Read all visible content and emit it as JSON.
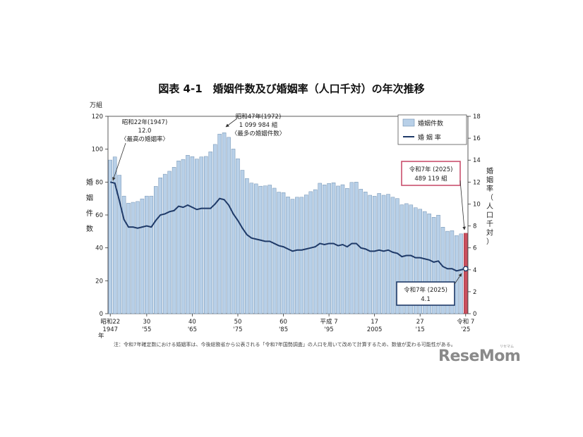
{
  "chart_data": {
    "type": "bar+line",
    "title": "図表 4-1　婚姻件数及び婚姻率（人口千対）の年次推移",
    "left_unit": "万組",
    "left_axis_label": [
      "婚",
      "姻",
      "件",
      "数"
    ],
    "right_axis_label": [
      "婚",
      "姻",
      "率",
      "（",
      "人",
      "口",
      "千",
      "対",
      "）"
    ],
    "y_left_ticks": [
      "0",
      "20",
      "40",
      "60",
      "80",
      "100",
      "120"
    ],
    "y_right_ticks": [
      "0",
      "2",
      "4",
      "6",
      "8",
      "10",
      "12",
      "14",
      "16",
      "18"
    ],
    "ylim_left": [
      0,
      120
    ],
    "ylim_right": [
      0,
      18
    ],
    "x_years": [
      1947,
      1948,
      1949,
      1950,
      1951,
      1952,
      1953,
      1954,
      1955,
      1956,
      1957,
      1958,
      1959,
      1960,
      1961,
      1962,
      1963,
      1964,
      1965,
      1966,
      1967,
      1968,
      1969,
      1970,
      1971,
      1972,
      1973,
      1974,
      1975,
      1976,
      1977,
      1978,
      1979,
      1980,
      1981,
      1982,
      1983,
      1984,
      1985,
      1986,
      1987,
      1988,
      1989,
      1990,
      1991,
      1992,
      1993,
      1994,
      1995,
      1996,
      1997,
      1998,
      1999,
      2000,
      2001,
      2002,
      2003,
      2004,
      2005,
      2006,
      2007,
      2008,
      2009,
      2010,
      2011,
      2012,
      2013,
      2014,
      2015,
      2016,
      2017,
      2018,
      2019,
      2020,
      2021,
      2022,
      2023,
      2024,
      2025
    ],
    "x_tick_labels": [
      {
        "year": 1947,
        "line1": "昭和22",
        "line2": "1947"
      },
      {
        "year": 1955,
        "line1": "30",
        "line2": "'55"
      },
      {
        "year": 1965,
        "line1": "40",
        "line2": "'65"
      },
      {
        "year": 1975,
        "line1": "50",
        "line2": "'75"
      },
      {
        "year": 1985,
        "line1": "60",
        "line2": "'85"
      },
      {
        "year": 1995,
        "line1": "平成 7",
        "line2": "'95"
      },
      {
        "year": 2005,
        "line1": "17",
        "line2": "2005"
      },
      {
        "year": 2015,
        "line1": "27",
        "line2": "'15"
      },
      {
        "year": 2025,
        "line1": "令和 7",
        "line2": "'25"
      }
    ],
    "x_axis_suffix": "年",
    "series": [
      {
        "name": "婚姻件数",
        "kind": "bar",
        "axis": "left",
        "color": "#b8d0e8",
        "highlight_color": "#c9505e",
        "values": [
          93.4,
          95.3,
          84.2,
          71.5,
          67.2,
          67.7,
          68.2,
          69.8,
          71.5,
          71.5,
          77.4,
          82.6,
          84.8,
          86.6,
          89.0,
          92.9,
          93.8,
          96.3,
          95.5,
          94.0,
          95.3,
          95.6,
          98.4,
          102.9,
          109.2,
          110.0,
          107.2,
          100.1,
          94.2,
          87.2,
          82.2,
          79.4,
          78.9,
          77.5,
          77.7,
          78.2,
          76.3,
          73.9,
          73.6,
          71.0,
          69.6,
          70.8,
          70.8,
          72.2,
          74.2,
          75.4,
          79.3,
          78.3,
          79.2,
          79.6,
          77.6,
          78.4,
          76.2,
          79.8,
          80.0,
          75.7,
          74.0,
          72.0,
          71.4,
          73.1,
          72.0,
          72.6,
          70.8,
          70.0,
          66.2,
          66.9,
          66.1,
          64.4,
          63.5,
          62.1,
          60.7,
          58.6,
          59.9,
          52.6,
          50.1,
          50.5,
          47.5,
          48.5,
          48.9
        ]
      },
      {
        "name": "婚 姻 率",
        "kind": "line",
        "axis": "right",
        "color": "#1f3a68",
        "values": [
          12.0,
          11.9,
          10.3,
          8.6,
          7.9,
          7.9,
          7.8,
          7.9,
          8.0,
          7.9,
          8.5,
          9.0,
          9.1,
          9.3,
          9.4,
          9.8,
          9.7,
          9.9,
          9.7,
          9.5,
          9.6,
          9.6,
          9.6,
          10.0,
          10.5,
          10.4,
          9.9,
          9.1,
          8.5,
          7.8,
          7.2,
          6.9,
          6.8,
          6.7,
          6.6,
          6.6,
          6.4,
          6.2,
          6.1,
          5.9,
          5.7,
          5.8,
          5.8,
          5.9,
          6.0,
          6.1,
          6.4,
          6.3,
          6.4,
          6.4,
          6.2,
          6.3,
          6.1,
          6.4,
          6.4,
          6.0,
          5.9,
          5.7,
          5.7,
          5.8,
          5.7,
          5.8,
          5.6,
          5.5,
          5.2,
          5.3,
          5.3,
          5.1,
          5.1,
          5.0,
          4.9,
          4.7,
          4.8,
          4.3,
          4.1,
          4.1,
          3.9,
          4.0,
          4.1
        ]
      }
    ],
    "legend": {
      "position": "top-right",
      "bar_label": "婚姻件数",
      "line_label": "婚 姻 率"
    },
    "annotations": [
      {
        "id": "peak_rate",
        "lines": [
          "昭和22年(1947)",
          "12.0",
          "〈最高の婚姻率〉"
        ]
      },
      {
        "id": "peak_count",
        "lines": [
          "昭和47年(1972)",
          "1 099 984 組",
          "〈最多の婚姻件数〉"
        ]
      },
      {
        "id": "latest_count",
        "lines": [
          "令和7年 (2025)",
          "489 119 組"
        ],
        "border_color": "#c9506e"
      },
      {
        "id": "latest_rate",
        "lines": [
          "令和7年 (2025)",
          "4.1"
        ],
        "border_color": "#1f3a68"
      }
    ],
    "note": "注：令和7年確定数における婚姻率は、今後総務省から公表される「令和7年国勢調査」の人口を用いて改めて計算するため、数値が変わる可能性がある。"
  },
  "watermark": {
    "text": "ReseMom",
    "subtext": "リセマム"
  }
}
